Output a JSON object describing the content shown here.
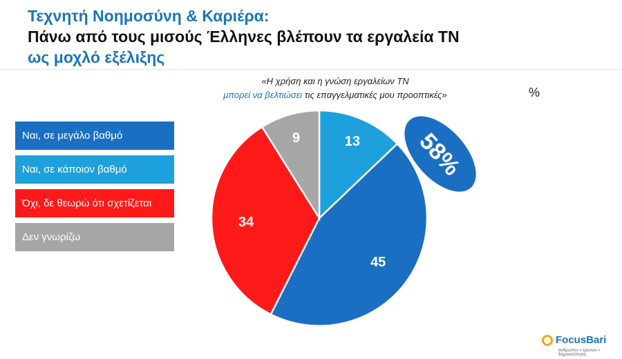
{
  "header": {
    "line1": "Τεχνητή Νοημοσύνη & Καριέρα:",
    "line2": "Πάνω από τους μισούς Έλληνες βλέπουν τα εργαλεία ΤΝ",
    "line3": "ως μοχλό εξέλιξης"
  },
  "question": {
    "part1": "«Η χρήση και η γνώση εργαλείων ΤΝ",
    "part2_highlight": "μπορεί να βελτιώσει",
    "part2_rest": " τις επαγγελματικές μου προοπτικές»"
  },
  "unit_label": "%",
  "callout": {
    "label": "58%"
  },
  "brand": {
    "name": "FocusBari",
    "tagline": "άνθρωποι » έρευνα » δημοσκόπηση"
  },
  "chart_data": {
    "type": "pie",
    "title": "",
    "start_angle_deg": 0,
    "direction": "clockwise",
    "slices": [
      {
        "label": "Ναι, σε κάποιον βαθμό",
        "value": 13,
        "color": "#1ea0dc"
      },
      {
        "label": "Ναι, σε μεγάλο βαθμό",
        "value": 45,
        "color": "#1b6fc2"
      },
      {
        "label": "Όχι, δε θεωρώ ότι σχετίζεται",
        "value": 34,
        "color": "#ff1a1a"
      },
      {
        "label": "Δεν γνωρίζω",
        "value": 9,
        "color": "#a6a6a6"
      }
    ],
    "legend": {
      "placement": "left",
      "items": [
        {
          "label": "Ναι, σε μεγάλο βαθμό",
          "color": "#1b6fc2"
        },
        {
          "label": "Ναι, σε κάποιον βαθμό",
          "color": "#1ea0dc"
        },
        {
          "label": "Όχι, δε θεωρώ ότι σχετίζεται",
          "color": "#ff1a1a"
        },
        {
          "label": "Δεν γνωρίζω",
          "color": "#a6a6a6"
        }
      ]
    }
  }
}
